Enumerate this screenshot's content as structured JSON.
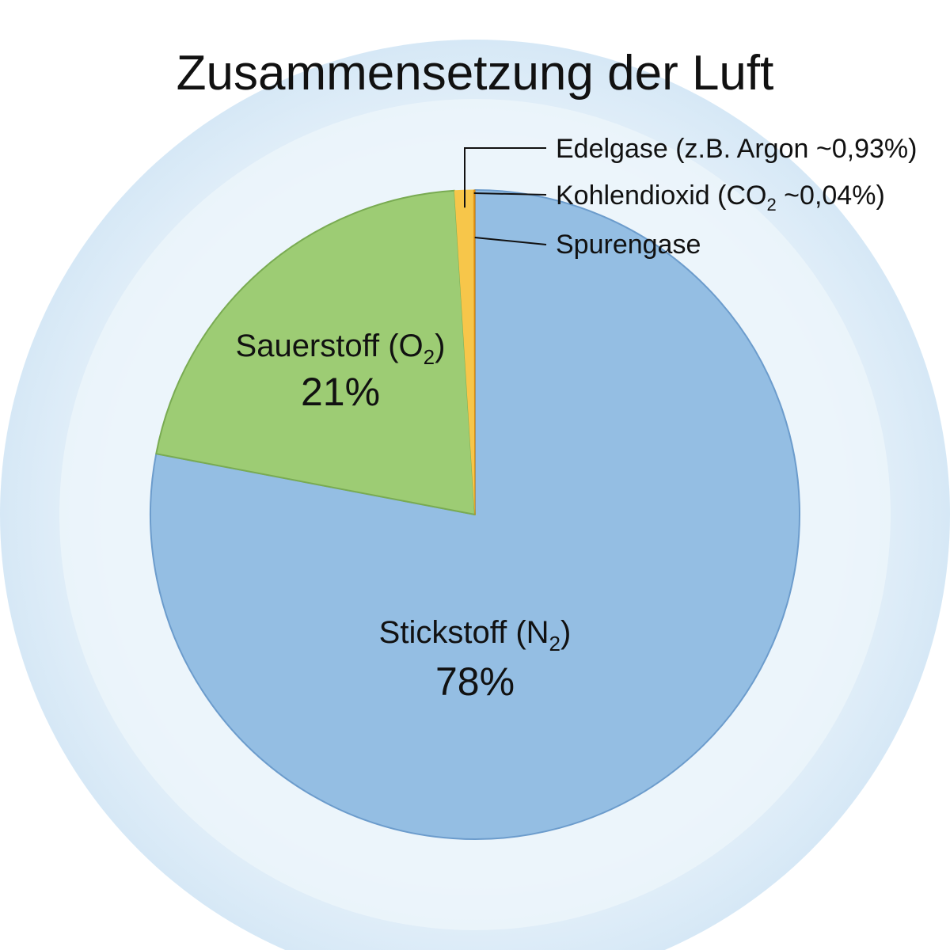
{
  "colors": {
    "halo_outer": "#d9eaf7",
    "halo_inner": "#eaf4fb",
    "nitrogen": "#94bee3",
    "nitrogen_stroke": "#6c9ccc",
    "oxygen": "#9dcc74",
    "oxygen_stroke": "#79ab52",
    "noble": "#f7c64a",
    "co2": "#e8a020",
    "trace": "#d98a10"
  },
  "chart_data": {
    "type": "pie",
    "title": "Zusammensetzung der Luft",
    "start": "12 o'clock, clockwise",
    "slices": [
      {
        "id": "nitrogen",
        "name": "Stickstoff (N",
        "sub": "2",
        "suffix": ")",
        "value": 78,
        "label": "78%",
        "color_key": "nitrogen",
        "stroke_key": "nitrogen_stroke"
      },
      {
        "id": "oxygen",
        "name": "Sauerstoff (O",
        "sub": "2",
        "suffix": ")",
        "value": 21,
        "label": "21%",
        "color_key": "oxygen",
        "stroke_key": "oxygen_stroke"
      },
      {
        "id": "noble",
        "name": "Edelgase (z.B. Argon ~0,93%)",
        "value": 0.93,
        "color_key": "noble"
      },
      {
        "id": "co2",
        "name": "Kohlendioxid (CO",
        "sub": "2",
        "suffix": " ~0,04%)",
        "value": 0.04,
        "color_key": "co2"
      },
      {
        "id": "trace",
        "name": "Spurengase",
        "value": 0.03,
        "color_key": "trace"
      }
    ]
  }
}
